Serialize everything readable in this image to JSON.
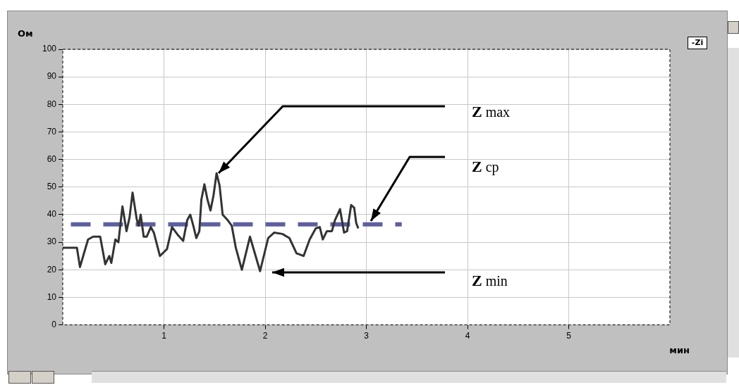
{
  "chart_data": {
    "type": "line",
    "xlabel": "мин",
    "ylabel": "Ом",
    "xlim": [
      0,
      6
    ],
    "xticks": [
      1,
      2,
      3,
      4,
      5
    ],
    "ylim": [
      0,
      100
    ],
    "yticks": [
      0,
      10,
      20,
      30,
      40,
      50,
      60,
      70,
      80,
      90,
      100
    ],
    "grid": true,
    "legend": false,
    "marker": "none",
    "series": [
      {
        "color": "#333333",
        "line_style": "solid",
        "x": [
          0,
          0.14,
          0.17,
          0.21,
          0.25,
          0.3,
          0.37,
          0.38,
          0.42,
          0.46,
          0.48,
          0.52,
          0.55,
          0.59,
          0.61,
          0.63,
          0.66,
          0.69,
          0.73,
          0.75,
          0.77,
          0.8,
          0.83,
          0.87,
          0.9,
          0.96,
          1.03,
          1.08,
          1.14,
          1.19,
          1.23,
          1.26,
          1.29,
          1.32,
          1.35,
          1.37,
          1.4,
          1.43,
          1.46,
          1.49,
          1.52,
          1.55,
          1.58,
          1.63,
          1.67,
          1.71,
          1.77,
          1.85,
          1.95,
          2.03,
          2.09,
          2.17,
          2.24,
          2.31,
          2.38,
          2.44,
          2.5,
          2.54,
          2.57,
          2.61,
          2.66,
          2.69,
          2.74,
          2.78,
          2.81,
          2.85,
          2.88,
          2.9,
          2.92
        ],
        "values": [
          28,
          28,
          21,
          26,
          31,
          32,
          32,
          30,
          22,
          25,
          22.5,
          31,
          30,
          43,
          38.5,
          34,
          39,
          48,
          38.5,
          36,
          40,
          32,
          32,
          35.5,
          33.5,
          25,
          27.5,
          35.5,
          32.5,
          30.5,
          38,
          40,
          36,
          31.5,
          34,
          45.5,
          51,
          45.5,
          41.5,
          47,
          55,
          50.5,
          40,
          38,
          36,
          28,
          20,
          32,
          19.5,
          31.5,
          33.5,
          33,
          31.5,
          26,
          25,
          31,
          35,
          35.5,
          31,
          34,
          34,
          38,
          42,
          33.5,
          34,
          43.5,
          42.5,
          37,
          35
        ]
      },
      {
        "color": "#5f5f9f",
        "line_style": "dashed",
        "x": [
          0.08,
          3.35
        ],
        "values": [
          36.5,
          36.5
        ]
      }
    ],
    "annotations": [
      "Z max",
      "Z cp",
      "Z min",
      "-Zi"
    ]
  }
}
